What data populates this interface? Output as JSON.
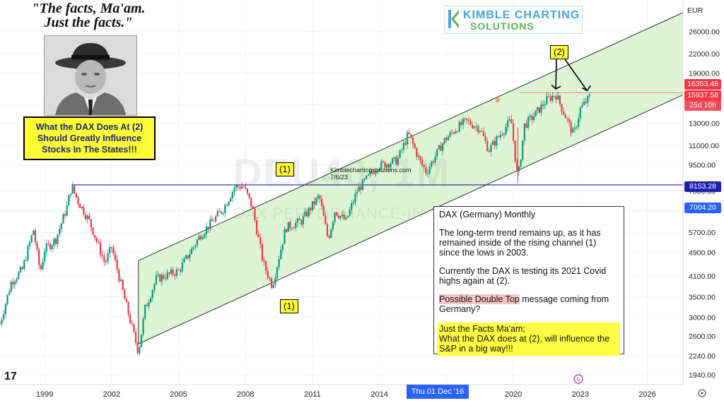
{
  "chart_data": {
    "type": "candlestick",
    "symbol": "DEU40, 1M",
    "subtitle": "DAX PERFORMANCE-INDEX",
    "currency": "EUR",
    "scale": "log",
    "ylim": [
      1800,
      33000
    ],
    "xlim": [
      1997.0,
      2027.6
    ],
    "price_ticks": [
      1940,
      2240,
      2600,
      3000,
      3500,
      4100,
      4900,
      5700,
      6700,
      7800,
      9500,
      11000,
      13000,
      15000,
      19000,
      22000,
      26000
    ],
    "price_tick_labels": [
      "1940.00",
      "2240.00",
      "2600.00",
      "3000.00",
      "3500.00",
      "4100.00",
      "4900.00",
      "5700.00",
      "6700.00",
      "7800.00",
      "9500.00",
      "11000.00",
      "13000.00",
      "15000.00",
      "19000.00",
      "22000.00",
      "26000.00"
    ],
    "time_ticks": [
      1999,
      2002,
      2005,
      2008,
      2011,
      2014,
      2017,
      2020,
      2023,
      2026
    ],
    "time_tick_labels": [
      "1999",
      "2002",
      "2005",
      "2008",
      "2011",
      "2014",
      "",
      "2020",
      "2023",
      "2026"
    ],
    "price_path": [
      [
        1997.0,
        2850
      ],
      [
        1997.5,
        3900
      ],
      [
        1998.0,
        4300
      ],
      [
        1998.5,
        5800
      ],
      [
        1998.8,
        4200
      ],
      [
        1999.0,
        5000
      ],
      [
        1999.5,
        5400
      ],
      [
        2000.0,
        6900
      ],
      [
        2000.2,
        8065
      ],
      [
        2000.5,
        7200
      ],
      [
        2001.0,
        6200
      ],
      [
        2001.7,
        4500
      ],
      [
        2002.0,
        5100
      ],
      [
        2002.6,
        3400
      ],
      [
        2003.2,
        2300
      ],
      [
        2003.5,
        3200
      ],
      [
        2004.0,
        4000
      ],
      [
        2005.0,
        4250
      ],
      [
        2006.0,
        5600
      ],
      [
        2007.0,
        6800
      ],
      [
        2007.5,
        8000
      ],
      [
        2007.9,
        8100
      ],
      [
        2008.3,
        6900
      ],
      [
        2008.8,
        4500
      ],
      [
        2009.2,
        3800
      ],
      [
        2009.8,
        5900
      ],
      [
        2010.5,
        6200
      ],
      [
        2011.3,
        7500
      ],
      [
        2011.7,
        5400
      ],
      [
        2012.0,
        6700
      ],
      [
        2012.5,
        6200
      ],
      [
        2013.0,
        7800
      ],
      [
        2013.9,
        9400
      ],
      [
        2014.8,
        9800
      ],
      [
        2015.3,
        12000
      ],
      [
        2015.8,
        9800
      ],
      [
        2016.1,
        9000
      ],
      [
        2016.9,
        11400
      ],
      [
        2017.5,
        12600
      ],
      [
        2017.9,
        13200
      ],
      [
        2018.5,
        12500
      ],
      [
        2018.9,
        10600
      ],
      [
        2019.5,
        12200
      ],
      [
        2019.9,
        13300
      ],
      [
        2020.2,
        8440
      ],
      [
        2020.5,
        12800
      ],
      [
        2020.9,
        13700
      ],
      [
        2021.5,
        15500
      ],
      [
        2021.9,
        16200
      ],
      [
        2022.2,
        14400
      ],
      [
        2022.7,
        11900
      ],
      [
        2023.0,
        14500
      ],
      [
        2023.45,
        15937.58
      ]
    ],
    "price_labels": [
      {
        "value": 16353.48,
        "label": "16353.48",
        "color": "#f23645"
      },
      {
        "value": 15937.58,
        "label": "15937.58",
        "sub": "25d 10h",
        "color": "#f23645"
      },
      {
        "value": 8153.28,
        "label": "8153.28",
        "color": "#1e22aa"
      },
      {
        "value": 7004.2,
        "label": "7004.20",
        "color": "#2962ff"
      }
    ],
    "lines": [
      {
        "name": "resistance",
        "value": 8153.28,
        "color": "#1e22aa"
      },
      {
        "name": "covid-high",
        "value": 16353.48,
        "color": "#f08080"
      }
    ],
    "channel": {
      "start_x": 2003.2,
      "end_x": 2027.6,
      "upper_start": 4600,
      "upper_end": 30000,
      "lower_start": 2450,
      "lower_end": 16100,
      "fill": "#ddf5d4"
    },
    "waves": [
      {
        "label": "(1)",
        "anchor_x": 2007.9,
        "anchor_y": 8065
      },
      {
        "label": "(1)",
        "anchor_x": 2009.2,
        "anchor_y": 3650
      },
      {
        "label": "(2)",
        "anchor_x": 2021.9,
        "anchor_y": 16300
      },
      {
        "label": "(2)",
        "anchor_x": 2023.3,
        "anchor_y": 16100
      }
    ]
  },
  "header": {
    "currency": "EUR"
  },
  "price_tags": {
    "covid_high": "16353.48",
    "last": "15937.58",
    "countdown": "25d 10h",
    "resistance": "8153.28",
    "crosshair": "7004.20"
  },
  "time_axis": {
    "crosshair_date": "Thu 01 Dec '16"
  },
  "overlay": {
    "watermark_symbol": "DEU40, 1M",
    "watermark_name": "DAX PERFORMANCE-IN",
    "quote_line1": "\"The facts, Ma'am.",
    "quote_line2": "Just the facts.\"",
    "influence_line1": "What the DAX Does At (2)",
    "influence_line2": "Should Greatly Influence",
    "influence_line3": "Stocks In The States!!!",
    "wave1_top": "(1)",
    "wave1_bottom": "(1)",
    "wave2": "(2)",
    "site": "Kimblechartingsolutions.com",
    "site_date": "7/6/23",
    "logo_line1": "KIMBLE CHARTING",
    "logo_line2": "SOLUTIONS",
    "tv_logo": "17"
  },
  "textbox": {
    "title": "DAX  (Germany) Monthly",
    "para1": "The long-term trend remains up, as it has remained inside of the rising channel (1) since the lows in 2003.",
    "para2": "Currently the DAX is testing its 2021 Covid highs again at (2).",
    "para3_highlight": "Possible Double Top",
    "para3_rest": " message coming from Germany?",
    "para4_line1": "Just the Facts Ma'am;",
    "para4_line2": "What the DAX does at (2), will influence the S&P in a big way!!!"
  },
  "colors": {
    "up": "#089981",
    "down": "#f23645",
    "channel_fill": "#ddf5d4",
    "channel_line": "#333333",
    "resistance": "#1e22aa",
    "highlight": "#ffff33"
  }
}
